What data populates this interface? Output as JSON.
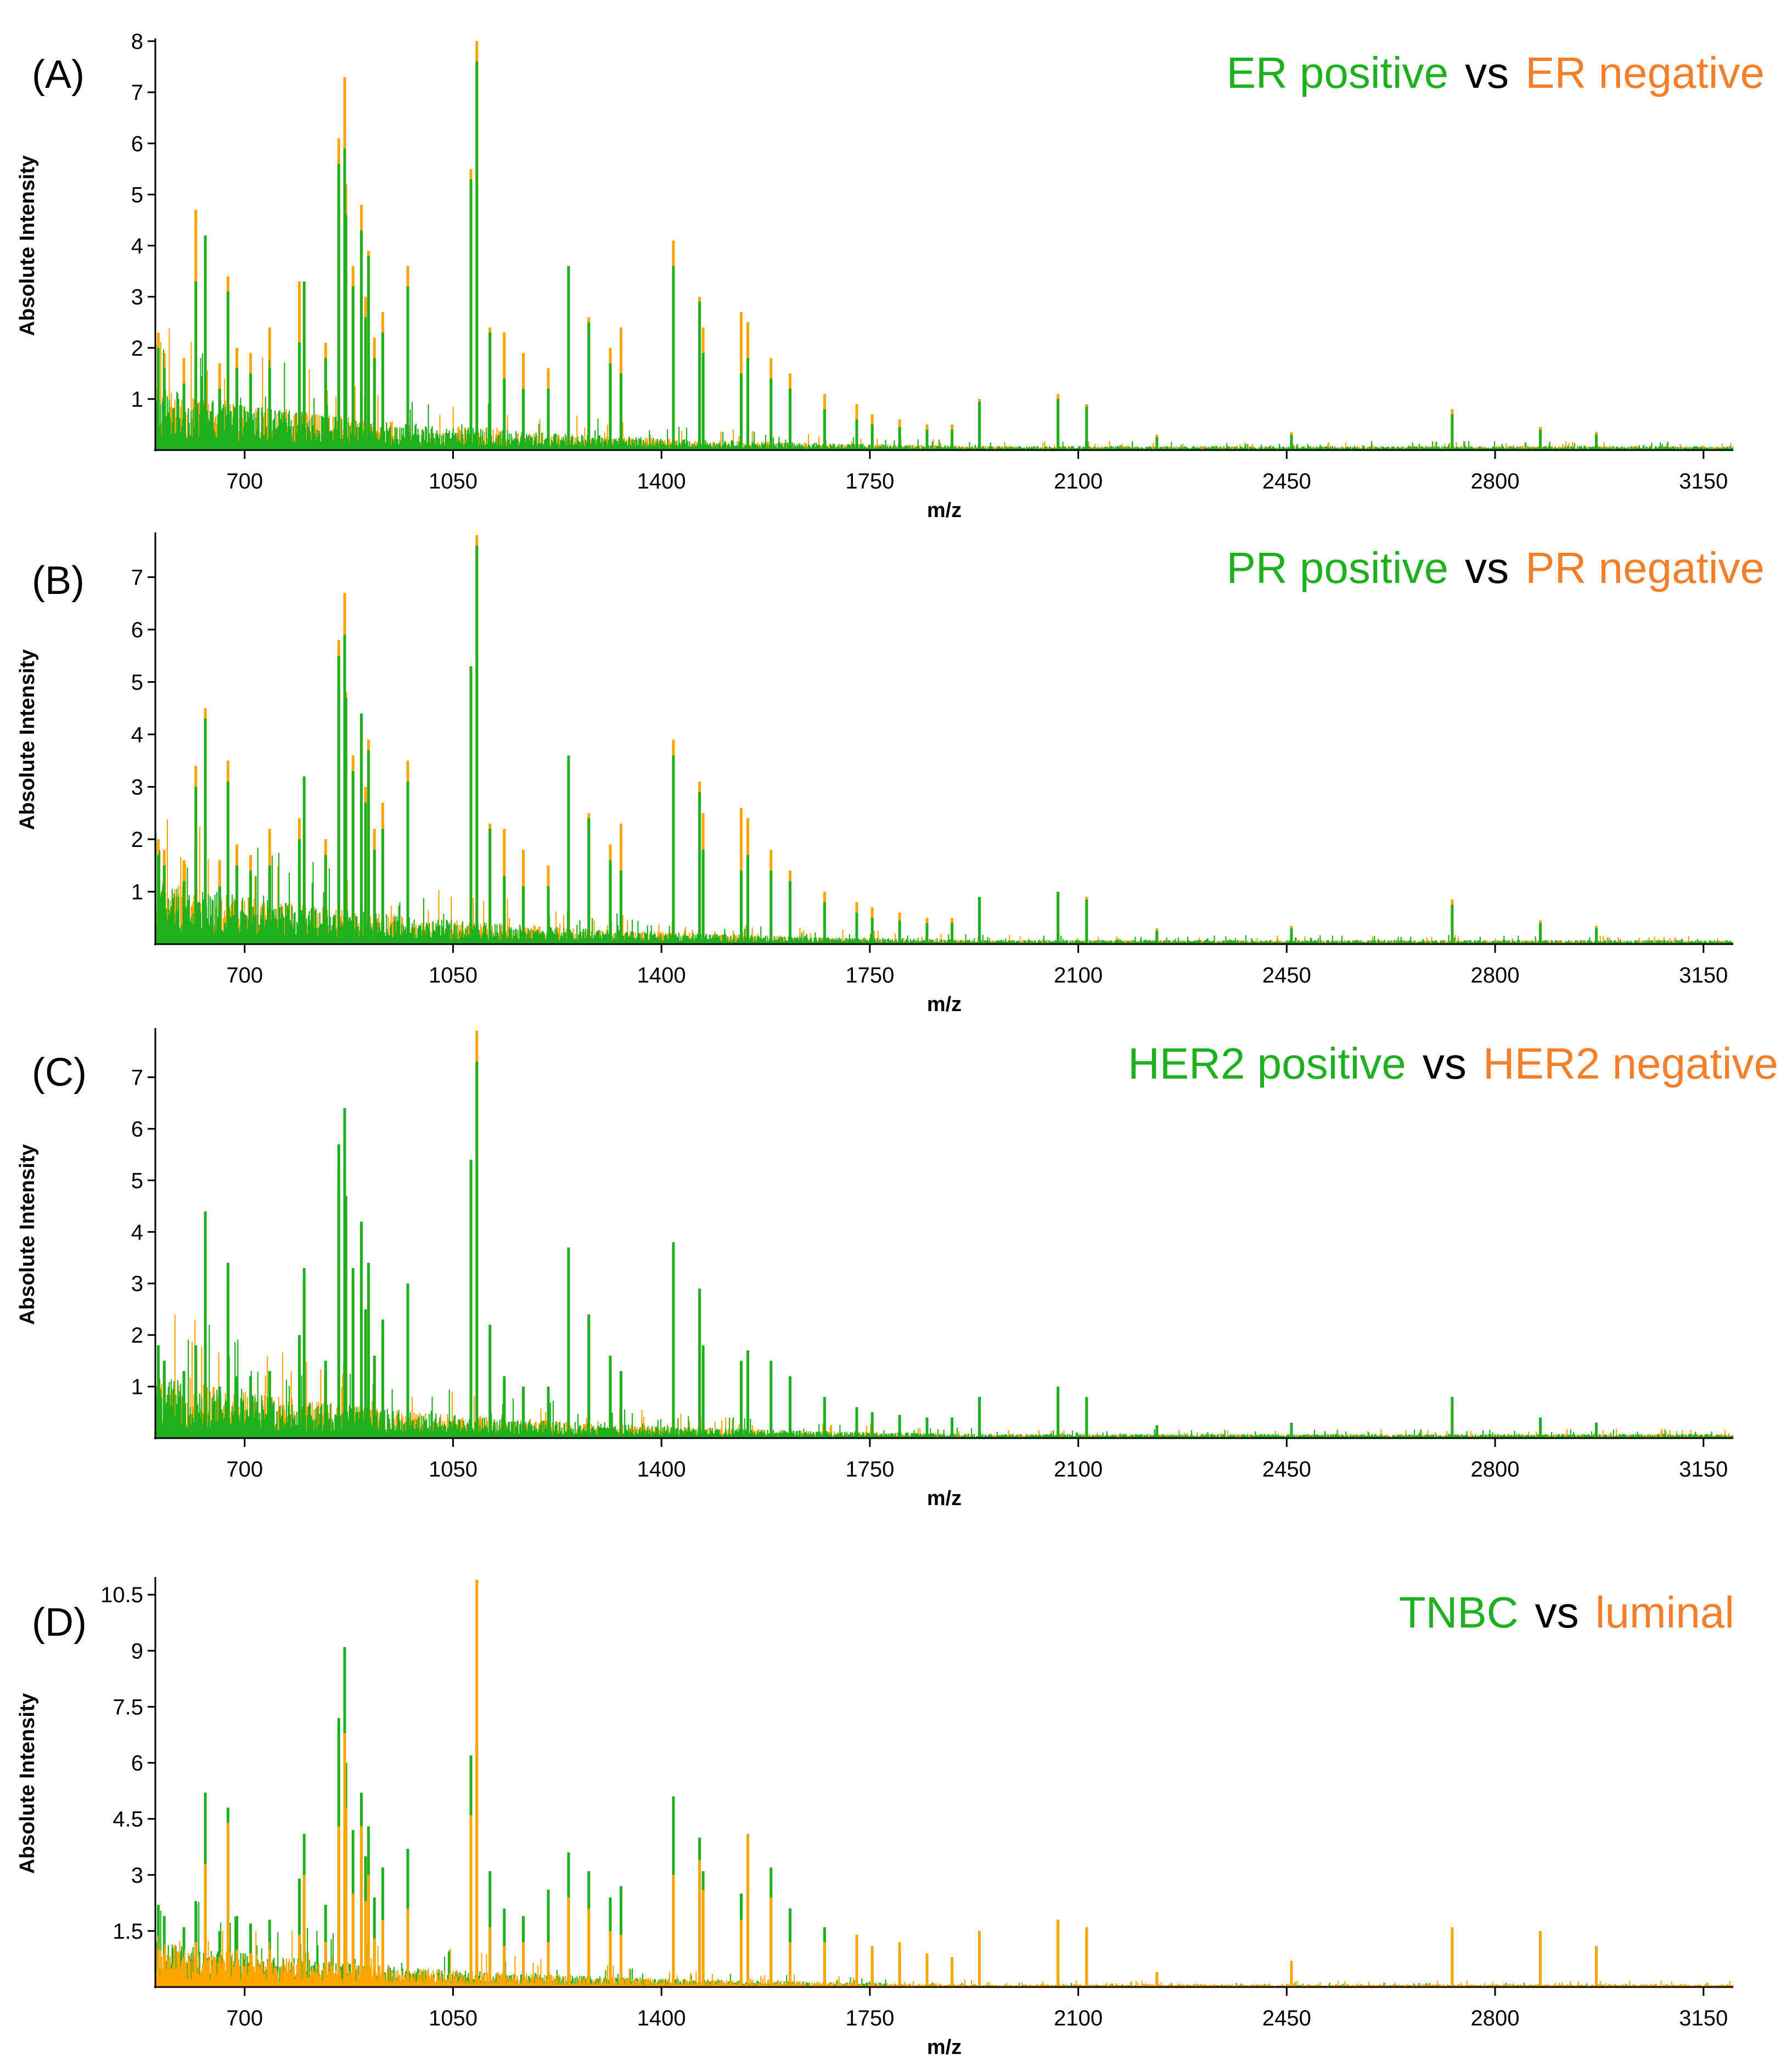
{
  "colors": {
    "group_a": "#1fb01f",
    "group_b": "#ffa500",
    "legend_b_text": "#f47f2a",
    "axis": "#000000"
  },
  "chart_data": [
    {
      "type": "line",
      "panel_label": "(A)",
      "legend": {
        "series_a": "ER positive",
        "vs": "vs",
        "series_b": "ER negative",
        "placement": "top-right"
      },
      "xlabel": "m/z",
      "ylabel": "Absolute Intensity",
      "xlim": [
        550,
        3200
      ],
      "ylim": [
        0,
        8
      ],
      "xticks": [
        700,
        1050,
        1400,
        1750,
        2100,
        2450,
        2800,
        3150
      ],
      "yticks": [
        1,
        2,
        3,
        4,
        5,
        6,
        7,
        8
      ],
      "ytick_labels": [
        "1",
        "2",
        "3",
        "4",
        "5",
        "6",
        "7",
        "8"
      ],
      "grid": false,
      "peaks_mz": [
        555,
        565,
        598,
        618,
        634,
        658,
        672,
        687,
        710,
        742,
        792,
        800,
        836,
        858,
        868,
        870,
        882,
        896,
        903,
        908,
        918,
        932,
        974,
        1080,
        1090,
        1112,
        1136,
        1168,
        1210,
        1244,
        1278,
        1314,
        1332,
        1420,
        1464,
        1470,
        1534,
        1545,
        1584,
        1616,
        1674,
        1728,
        1754,
        1800,
        1846,
        1888,
        1934,
        2066,
        2114,
        2232,
        2458,
        2728,
        2876,
        2970
      ],
      "series": [
        {
          "name": "ER positive",
          "color": "#1fb01f",
          "peaks": [
            2.0,
            1.6,
            1.3,
            3.3,
            4.2,
            1.2,
            3.1,
            1.6,
            1.5,
            1.6,
            2.1,
            3.3,
            1.8,
            5.6,
            5.9,
            4.6,
            3.2,
            4.3,
            2.6,
            3.8,
            1.8,
            2.3,
            3.2,
            5.3,
            7.6,
            2.3,
            1.4,
            1.2,
            1.2,
            3.6,
            2.5,
            1.7,
            1.5,
            3.6,
            2.9,
            1.9,
            1.5,
            1.8,
            1.4,
            1.2,
            0.8,
            0.6,
            0.5,
            0.45,
            0.4,
            0.4,
            0.95,
            1.0,
            0.85,
            0.25,
            0.3,
            0.7,
            0.4,
            0.3
          ]
        },
        {
          "name": "ER negative",
          "color": "#ffa500",
          "peaks": [
            2.3,
            1.9,
            1.8,
            4.7,
            3.8,
            1.7,
            3.4,
            2.0,
            1.9,
            2.4,
            3.3,
            2.2,
            2.1,
            6.1,
            7.3,
            5.2,
            3.6,
            4.8,
            3.0,
            3.9,
            2.2,
            2.7,
            3.6,
            5.5,
            8.0,
            2.4,
            2.3,
            1.9,
            1.6,
            3.6,
            2.6,
            2.0,
            2.4,
            4.1,
            3.0,
            2.4,
            2.7,
            2.5,
            1.8,
            1.5,
            1.1,
            0.9,
            0.7,
            0.6,
            0.5,
            0.5,
            1.0,
            1.1,
            0.9,
            0.3,
            0.35,
            0.8,
            0.45,
            0.35
          ]
        }
      ]
    },
    {
      "type": "line",
      "panel_label": "(B)",
      "legend": {
        "series_a": "PR positive",
        "vs": "vs",
        "series_b": "PR negative",
        "placement": "top-right"
      },
      "xlabel": "m/z",
      "ylabel": "Absolute Intensity",
      "xlim": [
        550,
        3200
      ],
      "ylim": [
        0,
        7.8
      ],
      "xticks": [
        700,
        1050,
        1400,
        1750,
        2100,
        2450,
        2800,
        3150
      ],
      "yticks": [
        1,
        2,
        3,
        4,
        5,
        6,
        7
      ],
      "ytick_labels": [
        "1",
        "2",
        "3",
        "4",
        "5",
        "6",
        "7"
      ],
      "grid": false,
      "peaks_mz": [
        555,
        565,
        598,
        618,
        634,
        658,
        672,
        687,
        710,
        742,
        792,
        800,
        836,
        858,
        868,
        870,
        882,
        896,
        903,
        908,
        918,
        932,
        974,
        1080,
        1090,
        1112,
        1136,
        1168,
        1210,
        1244,
        1278,
        1314,
        1332,
        1420,
        1464,
        1470,
        1534,
        1545,
        1584,
        1616,
        1674,
        1728,
        1754,
        1800,
        1846,
        1888,
        1934,
        2066,
        2114,
        2232,
        2458,
        2728,
        2876,
        2970
      ],
      "series": [
        {
          "name": "PR positive",
          "color": "#1fb01f",
          "peaks": [
            1.7,
            1.5,
            1.2,
            3.0,
            4.3,
            1.1,
            3.1,
            1.5,
            1.4,
            1.5,
            2.0,
            3.2,
            1.7,
            5.5,
            5.9,
            4.7,
            3.3,
            4.4,
            2.7,
            3.7,
            1.8,
            2.2,
            3.1,
            5.3,
            7.6,
            2.2,
            1.3,
            1.1,
            1.1,
            3.6,
            2.4,
            1.6,
            1.4,
            3.6,
            2.9,
            1.8,
            1.4,
            1.7,
            1.4,
            1.2,
            0.8,
            0.6,
            0.5,
            0.45,
            0.4,
            0.4,
            0.9,
            1.0,
            0.85,
            0.25,
            0.3,
            0.75,
            0.4,
            0.3
          ]
        },
        {
          "name": "PR negative",
          "color": "#ffa500",
          "peaks": [
            2.0,
            1.8,
            1.6,
            3.4,
            4.5,
            1.6,
            3.5,
            1.9,
            1.7,
            2.2,
            2.4,
            2.1,
            2.0,
            5.8,
            6.7,
            4.8,
            3.6,
            4.2,
            3.0,
            3.9,
            2.2,
            2.7,
            3.5,
            5.2,
            7.8,
            2.3,
            2.2,
            1.8,
            1.5,
            3.5,
            2.5,
            1.9,
            2.3,
            3.9,
            3.1,
            2.5,
            2.6,
            2.4,
            1.8,
            1.4,
            1.0,
            0.8,
            0.7,
            0.6,
            0.5,
            0.5,
            0.9,
            1.0,
            0.9,
            0.3,
            0.35,
            0.85,
            0.45,
            0.35
          ]
        }
      ]
    },
    {
      "type": "line",
      "panel_label": "(C)",
      "legend": {
        "series_a": "HER2 positive",
        "vs": "vs",
        "series_b": "HER2 negative",
        "placement": "top-right"
      },
      "xlabel": "m/z",
      "ylabel": "Absolute Intensity",
      "xlim": [
        550,
        3200
      ],
      "ylim": [
        0,
        7.9
      ],
      "xticks": [
        700,
        1050,
        1400,
        1750,
        2100,
        2450,
        2800,
        3150
      ],
      "yticks": [
        1,
        2,
        3,
        4,
        5,
        6,
        7
      ],
      "ytick_labels": [
        "1",
        "2",
        "3",
        "4",
        "5",
        "6",
        "7"
      ],
      "grid": false,
      "peaks_mz": [
        555,
        565,
        598,
        618,
        634,
        658,
        672,
        687,
        710,
        742,
        792,
        800,
        836,
        858,
        868,
        870,
        882,
        896,
        903,
        908,
        918,
        932,
        974,
        1080,
        1090,
        1112,
        1136,
        1168,
        1210,
        1244,
        1278,
        1314,
        1332,
        1420,
        1464,
        1470,
        1534,
        1545,
        1584,
        1616,
        1674,
        1728,
        1754,
        1800,
        1846,
        1888,
        1934,
        2066,
        2114,
        2232,
        2458,
        2728,
        2876,
        2970
      ],
      "series": [
        {
          "name": "HER2 positive",
          "color": "#1fb01f",
          "peaks": [
            1.8,
            1.5,
            1.3,
            1.8,
            4.4,
            1.0,
            3.4,
            1.2,
            1.2,
            1.3,
            2.0,
            3.3,
            1.5,
            5.7,
            6.4,
            4.7,
            3.3,
            4.2,
            2.5,
            3.4,
            1.6,
            2.3,
            3.0,
            5.4,
            7.3,
            2.2,
            1.2,
            1.0,
            1.0,
            3.7,
            2.4,
            1.6,
            1.3,
            3.8,
            2.9,
            1.8,
            1.5,
            1.7,
            1.5,
            1.2,
            0.8,
            0.6,
            0.5,
            0.45,
            0.4,
            0.4,
            0.8,
            1.0,
            0.8,
            0.25,
            0.3,
            0.8,
            0.4,
            0.3
          ]
        },
        {
          "name": "HER2 negative",
          "color": "#ffa500",
          "peaks": [
            1.6,
            1.3,
            1.2,
            1.5,
            3.8,
            0.9,
            3.0,
            1.1,
            1.1,
            1.2,
            1.8,
            3.0,
            1.3,
            5.2,
            6.0,
            4.3,
            3.0,
            3.9,
            2.3,
            3.2,
            1.5,
            2.1,
            2.7,
            5.0,
            7.9,
            2.0,
            1.1,
            0.9,
            0.9,
            3.4,
            2.3,
            1.5,
            1.2,
            3.7,
            2.7,
            1.6,
            1.4,
            1.6,
            1.4,
            1.1,
            0.7,
            0.6,
            0.5,
            0.4,
            0.35,
            0.35,
            0.75,
            0.9,
            0.75,
            0.2,
            0.25,
            0.7,
            0.35,
            0.25
          ]
        }
      ]
    },
    {
      "type": "line",
      "panel_label": "(D)",
      "legend": {
        "series_a": "TNBC",
        "vs": "vs",
        "series_b": "luminal",
        "placement": "top-right"
      },
      "xlabel": "m/z",
      "ylabel": "Absolute Intensity",
      "xlim": [
        550,
        3200
      ],
      "ylim": [
        0,
        10.9
      ],
      "xticks": [
        700,
        1050,
        1400,
        1750,
        2100,
        2450,
        2800,
        3150
      ],
      "yticks": [
        1.5,
        3,
        4.5,
        6,
        7.5,
        9,
        10.5
      ],
      "ytick_labels": [
        "1.5",
        "3",
        "4.5",
        "6",
        "7.5",
        "9",
        "10.5"
      ],
      "grid": false,
      "peaks_mz": [
        555,
        565,
        598,
        618,
        634,
        658,
        672,
        687,
        710,
        742,
        792,
        800,
        836,
        858,
        868,
        870,
        882,
        896,
        903,
        908,
        918,
        932,
        974,
        1080,
        1090,
        1112,
        1136,
        1168,
        1210,
        1244,
        1278,
        1314,
        1332,
        1420,
        1464,
        1470,
        1534,
        1545,
        1584,
        1616,
        1674,
        1728,
        1754,
        1800,
        1846,
        1888,
        1934,
        2066,
        2114,
        2232,
        2458,
        2728,
        2876,
        2970
      ],
      "series": [
        {
          "name": "TNBC",
          "color": "#1fb01f",
          "peaks": [
            2.2,
            1.9,
            1.6,
            2.3,
            5.2,
            1.5,
            4.8,
            1.9,
            1.7,
            1.8,
            2.9,
            4.1,
            2.2,
            7.2,
            9.1,
            6.0,
            4.2,
            5.2,
            3.5,
            4.3,
            2.4,
            3.2,
            3.7,
            6.2,
            6.5,
            3.1,
            2.1,
            1.9,
            2.6,
            3.6,
            3.1,
            2.4,
            2.7,
            5.1,
            4.0,
            3.1,
            2.5,
            3.6,
            3.2,
            2.1,
            1.6,
            1.1,
            0.8,
            0.9,
            0.7,
            0.7,
            1.1,
            1.6,
            1.4,
            0.3,
            0.5,
            1.2,
            0.8,
            0.5
          ]
        },
        {
          "name": "luminal",
          "color": "#ffa500",
          "peaks": [
            1.0,
            0.9,
            0.8,
            1.2,
            3.3,
            0.8,
            4.4,
            1.0,
            0.9,
            1.0,
            1.4,
            3.0,
            1.2,
            4.3,
            6.8,
            4.8,
            2.5,
            4.3,
            2.3,
            3.0,
            1.3,
            1.8,
            2.1,
            4.6,
            10.9,
            1.6,
            1.1,
            1.2,
            1.2,
            2.4,
            2.1,
            1.5,
            1.4,
            3.0,
            3.4,
            2.6,
            1.8,
            4.1,
            2.4,
            1.2,
            1.2,
            1.4,
            1.1,
            1.2,
            0.9,
            0.8,
            1.5,
            1.8,
            1.6,
            0.4,
            0.7,
            1.6,
            1.5,
            1.1
          ]
        }
      ]
    }
  ]
}
